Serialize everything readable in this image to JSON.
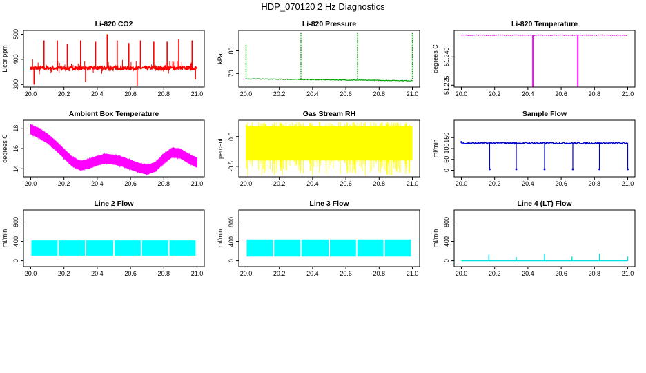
{
  "figure_title": "HDP_070120  2 Hz Diagnostics",
  "chart_data": [
    {
      "type": "line",
      "title": "Li-820 CO2",
      "ylabel": "Licor ppm",
      "xlim": [
        20.0,
        21.0
      ],
      "ylim": [
        290,
        515
      ],
      "xticks": [
        "20.0",
        "20.2",
        "20.4",
        "20.6",
        "20.8",
        "21.0"
      ],
      "yticks": [
        300,
        400,
        500
      ],
      "color": "#ff0000",
      "pattern": "spiky",
      "baseline": 365,
      "noise": 6,
      "spikes": [
        [
          20.02,
          300
        ],
        [
          20.08,
          475
        ],
        [
          20.16,
          475
        ],
        [
          20.22,
          460
        ],
        [
          20.3,
          475
        ],
        [
          20.33,
          310
        ],
        [
          20.39,
          470
        ],
        [
          20.46,
          500
        ],
        [
          20.52,
          475
        ],
        [
          20.59,
          465
        ],
        [
          20.64,
          295
        ],
        [
          20.66,
          475
        ],
        [
          20.74,
          470
        ],
        [
          20.82,
          470
        ],
        [
          20.89,
          480
        ],
        [
          20.97,
          475
        ],
        [
          20.99,
          320
        ]
      ]
    },
    {
      "type": "line",
      "title": "Li-820 Pressure",
      "ylabel": "kPa",
      "xlim": [
        20.0,
        21.0
      ],
      "ylim": [
        64,
        89
      ],
      "xticks": [
        "20.0",
        "20.2",
        "20.4",
        "20.6",
        "20.8",
        "21.0"
      ],
      "yticks": [
        70,
        80
      ],
      "color": "#00a000",
      "pattern": "steps",
      "start": 67.6,
      "end": 66.8,
      "spikes": [
        [
          20.0,
          83
        ],
        [
          20.33,
          88
        ],
        [
          20.67,
          88
        ],
        [
          21.0,
          88
        ]
      ]
    },
    {
      "type": "line",
      "title": "Li-820 Temperature",
      "ylabel": "degrees C",
      "xlim": [
        20.0,
        21.0
      ],
      "ylim": [
        51.224,
        51.254
      ],
      "xticks": [
        "20.0",
        "20.2",
        "20.4",
        "20.6",
        "20.8",
        "21.0"
      ],
      "yticks": [
        "51.225",
        "51.240"
      ],
      "color": "#ff00ff",
      "pattern": "drops",
      "baseline": 51.2515,
      "spikes": [
        [
          20.43,
          51.224
        ],
        [
          20.7,
          51.224
        ]
      ]
    },
    {
      "type": "area",
      "title": "Ambient Box Temperature",
      "ylabel": "degrees C",
      "xlim": [
        20.0,
        21.0
      ],
      "ylim": [
        13.2,
        18.8
      ],
      "xticks": [
        "20.0",
        "20.2",
        "20.4",
        "20.6",
        "20.8",
        "21.0"
      ],
      "yticks": [
        14,
        16,
        18
      ],
      "color": "#ff00ff",
      "pattern": "band",
      "x": [
        20.0,
        20.05,
        20.1,
        20.15,
        20.2,
        20.25,
        20.3,
        20.35,
        20.4,
        20.45,
        20.5,
        20.55,
        20.6,
        20.65,
        20.7,
        20.75,
        20.8,
        20.85,
        20.9,
        20.95,
        21.0
      ],
      "values": [
        17.9,
        17.5,
        17.0,
        16.3,
        15.5,
        14.7,
        14.3,
        14.5,
        14.8,
        15.0,
        14.9,
        14.7,
        14.4,
        14.1,
        13.9,
        14.2,
        15.0,
        15.6,
        15.5,
        15.0,
        14.6
      ],
      "halfwidth": 0.45
    },
    {
      "type": "area",
      "title": "Gas Stream RH",
      "ylabel": "percent",
      "xlim": [
        20.0,
        21.0
      ],
      "ylim": [
        -0.85,
        1.05
      ],
      "xticks": [
        "20.0",
        "20.2",
        "20.4",
        "20.6",
        "20.8",
        "21.0"
      ],
      "yticks": [
        "-0.5",
        "0.5"
      ],
      "color": "#ffff00",
      "pattern": "noiseband",
      "low": -0.3,
      "high": 0.85,
      "minspike": -0.82,
      "maxspike": 1.0
    },
    {
      "type": "line",
      "title": "Sample Flow",
      "ylabel": "ml/min",
      "xlim": [
        20.0,
        21.0
      ],
      "ylim": [
        -30,
        230
      ],
      "xticks": [
        "20.0",
        "20.2",
        "20.4",
        "20.6",
        "20.8",
        "21.0"
      ],
      "yticks": [
        0,
        50,
        100,
        150
      ],
      "color": "#0000cc",
      "pattern": "dips",
      "baseline": 125,
      "spikes": [
        [
          20.0,
          130
        ],
        [
          20.17,
          5
        ],
        [
          20.33,
          5
        ],
        [
          20.5,
          5
        ],
        [
          20.67,
          5
        ],
        [
          20.83,
          5
        ],
        [
          21.0,
          5
        ]
      ]
    },
    {
      "type": "area",
      "title": "Line 2 Flow",
      "ylabel": "ml/min",
      "xlim": [
        20.0,
        21.0
      ],
      "ylim": [
        -120,
        1050
      ],
      "xticks": [
        "20.0",
        "20.2",
        "20.4",
        "20.6",
        "20.8",
        "21.0"
      ],
      "yticks": [
        0,
        400,
        800
      ],
      "color": "#00ffff",
      "pattern": "blocks",
      "low": 110,
      "high": 420,
      "gaps": [
        20.165,
        20.33,
        20.5,
        20.665,
        20.83
      ]
    },
    {
      "type": "area",
      "title": "Line 3 Flow",
      "ylabel": "ml/min",
      "xlim": [
        20.0,
        21.0
      ],
      "ylim": [
        -120,
        1050
      ],
      "xticks": [
        "20.0",
        "20.2",
        "20.4",
        "20.6",
        "20.8",
        "21.0"
      ],
      "yticks": [
        0,
        400,
        800
      ],
      "color": "#00ffff",
      "pattern": "blocks",
      "low": 90,
      "high": 440,
      "gaps": [
        20.165,
        20.33,
        20.5,
        20.665,
        20.83
      ]
    },
    {
      "type": "line",
      "title": "Line 4 (LT) Flow",
      "ylabel": "ml/min",
      "xlim": [
        20.0,
        21.0
      ],
      "ylim": [
        -120,
        1050
      ],
      "xticks": [
        "20.0",
        "20.2",
        "20.4",
        "20.6",
        "20.8",
        "21.0"
      ],
      "yticks": [
        0,
        400,
        800
      ],
      "color": "#00e0e0",
      "pattern": "flat",
      "baseline": 0,
      "spikes": [
        [
          20.165,
          130
        ],
        [
          20.33,
          80
        ],
        [
          20.5,
          140
        ],
        [
          20.665,
          90
        ],
        [
          20.83,
          150
        ],
        [
          21.0,
          90
        ]
      ]
    }
  ]
}
